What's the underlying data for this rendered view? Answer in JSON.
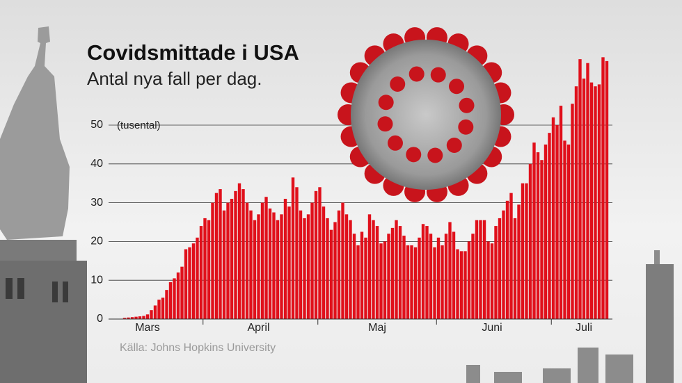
{
  "chart_data": {
    "type": "bar",
    "title": "Covidsmittade i USA",
    "subtitle": "Antal nya fall per dag.",
    "annotation": "(tusental)",
    "source": "Källa: Johns Hopkins University",
    "color": "#e0101b",
    "ylim": [
      0,
      70
    ],
    "yticks": [
      0,
      10,
      20,
      30,
      40,
      50
    ],
    "grid": true,
    "categories": [
      null,
      null,
      null,
      null,
      null,
      null,
      "Mars",
      null,
      null,
      null,
      null,
      null,
      null,
      null,
      null,
      null,
      null,
      null,
      null,
      null,
      null,
      null,
      null,
      null,
      null,
      null,
      null,
      null,
      null,
      null,
      null,
      null,
      null,
      null,
      null,
      "April",
      null,
      null,
      null,
      null,
      null,
      null,
      null,
      null,
      null,
      null,
      null,
      null,
      null,
      null,
      null,
      null,
      null,
      null,
      null,
      null,
      null,
      null,
      null,
      null,
      null,
      null,
      null,
      null,
      null,
      null,
      "Maj",
      null,
      null,
      null,
      null,
      null,
      null,
      null,
      null,
      null,
      null,
      null,
      null,
      null,
      null,
      null,
      null,
      null,
      null,
      null,
      null,
      null,
      null,
      null,
      null,
      null,
      null,
      null,
      null,
      null,
      "Juni",
      null,
      null,
      null,
      null,
      null,
      null,
      null,
      null,
      null,
      null,
      null,
      null,
      null,
      null,
      null,
      null,
      null,
      null,
      null,
      null,
      null,
      null,
      null,
      "Juli",
      null,
      null,
      null,
      null,
      null,
      null
    ],
    "values": [
      0.3,
      0.4,
      0.5,
      0.6,
      0.7,
      0.8,
      1.2,
      2.3,
      3.5,
      5,
      5.5,
      7.5,
      9.5,
      10.5,
      12,
      13.5,
      18,
      18.5,
      19.5,
      21,
      24,
      26,
      25.5,
      30,
      32.5,
      33.5,
      28,
      30,
      31,
      33,
      35,
      33.5,
      30,
      28,
      25.5,
      27,
      30,
      31.5,
      28.5,
      27.5,
      25.5,
      27,
      31,
      29,
      36.5,
      34,
      28,
      26,
      27,
      30,
      33,
      34,
      29,
      26,
      23,
      25,
      28,
      30,
      27,
      25.5,
      22,
      19,
      22.5,
      21,
      27,
      25.5,
      24,
      19.5,
      20,
      22,
      23.5,
      25.5,
      24,
      21.5,
      19,
      19,
      18.5,
      21,
      24.5,
      24,
      22,
      18.5,
      21,
      19,
      22,
      25,
      22.5,
      18,
      17.5,
      17.5,
      20,
      22,
      25.5,
      25.5,
      25.5,
      20,
      19.5,
      24,
      26,
      28,
      30.5,
      32.5,
      26,
      29.5,
      35,
      35,
      40,
      45.5,
      43,
      41,
      45,
      48,
      52,
      50,
      55,
      46,
      45,
      55.5,
      60,
      67,
      62,
      66,
      61,
      60,
      60.5,
      67.5,
      66.5
    ]
  }
}
